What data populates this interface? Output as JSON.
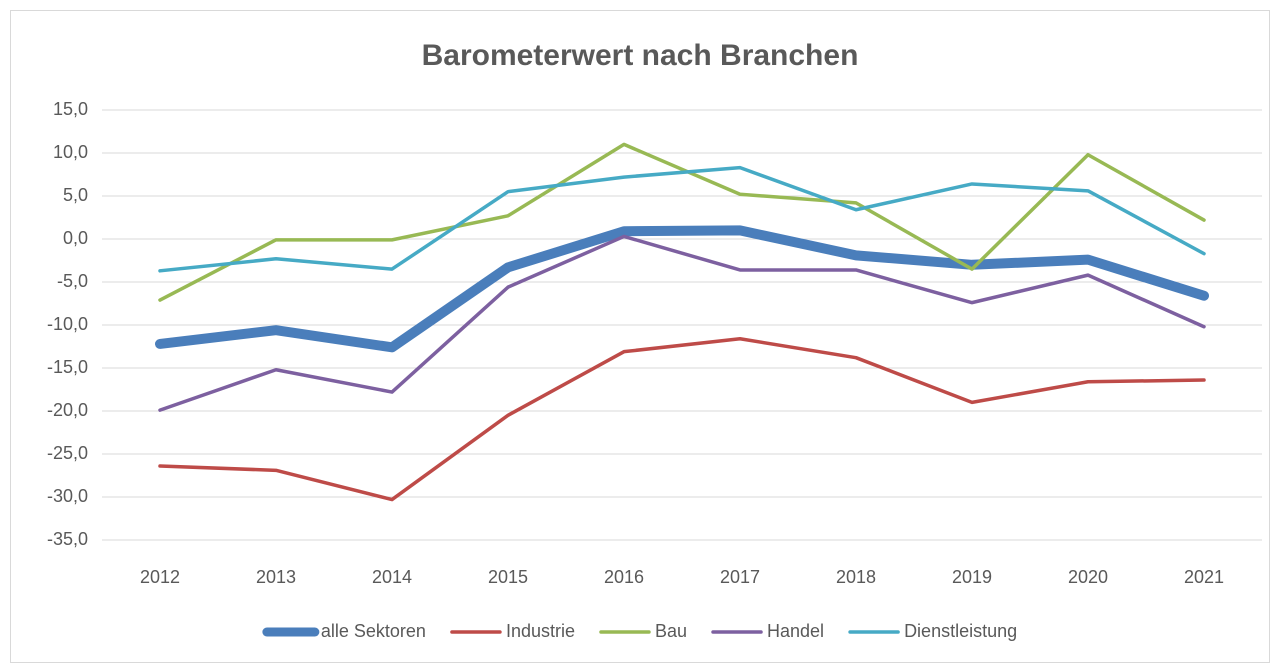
{
  "chart_data": {
    "type": "line",
    "title": "Barometerwert nach Branchen",
    "categories": [
      "2012",
      "2013",
      "2014",
      "2015",
      "2016",
      "2017",
      "2018",
      "2019",
      "2020",
      "2021"
    ],
    "series": [
      {
        "name": "alle Sektoren",
        "color": "#4a7ebb",
        "line_width": 10,
        "values": [
          -12.2,
          -10.6,
          -12.6,
          -3.3,
          0.9,
          1.0,
          -1.9,
          -3.0,
          -2.4,
          -6.6
        ]
      },
      {
        "name": "Industrie",
        "color": "#be4b48",
        "line_width": 3.5,
        "values": [
          -26.4,
          -26.9,
          -30.3,
          -20.5,
          -13.1,
          -11.6,
          -13.8,
          -19.0,
          -16.6,
          -16.4
        ]
      },
      {
        "name": "Bau",
        "color": "#98b954",
        "line_width": 3.5,
        "values": [
          -7.1,
          -0.1,
          -0.1,
          2.7,
          11.0,
          5.2,
          4.2,
          -3.5,
          9.8,
          2.2
        ]
      },
      {
        "name": "Handel",
        "color": "#7d60a0",
        "line_width": 3.5,
        "values": [
          -19.9,
          -15.2,
          -17.8,
          -5.6,
          0.3,
          -3.6,
          -3.6,
          -7.4,
          -4.2,
          -10.2
        ]
      },
      {
        "name": "Dienstleistung",
        "color": "#46aac5",
        "line_width": 3.5,
        "values": [
          -3.7,
          -2.3,
          -3.5,
          5.5,
          7.2,
          8.3,
          3.4,
          6.4,
          5.6,
          -1.7
        ]
      }
    ],
    "ylim": [
      -35,
      15
    ],
    "yticks": [
      {
        "value": -35,
        "label": "-35,0"
      },
      {
        "value": -30,
        "label": "-30,0"
      },
      {
        "value": -25,
        "label": "-25,0"
      },
      {
        "value": -20,
        "label": "-20,0"
      },
      {
        "value": -15,
        "label": "-15,0"
      },
      {
        "value": -10,
        "label": "-10,0"
      },
      {
        "value": -5,
        "label": "-5,0"
      },
      {
        "value": 0,
        "label": "0,0"
      },
      {
        "value": 5,
        "label": "5,0"
      },
      {
        "value": 10,
        "label": "10,0"
      },
      {
        "value": 15,
        "label": "15,0"
      }
    ],
    "grid": true,
    "legend": "bottom"
  }
}
